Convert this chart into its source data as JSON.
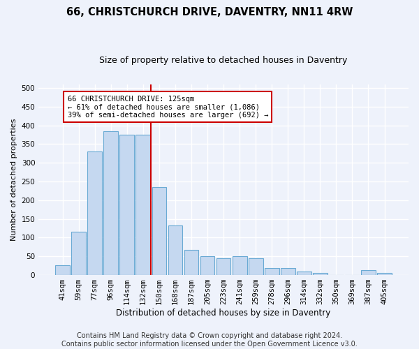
{
  "title": "66, CHRISTCHURCH DRIVE, DAVENTRY, NN11 4RW",
  "subtitle": "Size of property relative to detached houses in Daventry",
  "xlabel": "Distribution of detached houses by size in Daventry",
  "ylabel": "Number of detached properties",
  "bar_labels": [
    "41sqm",
    "59sqm",
    "77sqm",
    "96sqm",
    "114sqm",
    "132sqm",
    "150sqm",
    "168sqm",
    "187sqm",
    "205sqm",
    "223sqm",
    "241sqm",
    "259sqm",
    "278sqm",
    "296sqm",
    "314sqm",
    "332sqm",
    "350sqm",
    "369sqm",
    "387sqm",
    "405sqm"
  ],
  "bar_values": [
    27,
    116,
    330,
    385,
    375,
    375,
    236,
    133,
    68,
    50,
    44,
    50,
    44,
    18,
    18,
    10,
    5,
    0,
    0,
    13,
    5
  ],
  "bar_color": "#c5d8f0",
  "bar_edge_color": "#6aaad4",
  "vline_x": 5.5,
  "vline_color": "#cc0000",
  "annotation_text": "66 CHRISTCHURCH DRIVE: 125sqm\n← 61% of detached houses are smaller (1,086)\n39% of semi-detached houses are larger (692) →",
  "annotation_box_color": "#ffffff",
  "annotation_box_edge": "#cc0000",
  "ylim": [
    0,
    510
  ],
  "yticks": [
    0,
    50,
    100,
    150,
    200,
    250,
    300,
    350,
    400,
    450,
    500
  ],
  "footer_line1": "Contains HM Land Registry data © Crown copyright and database right 2024.",
  "footer_line2": "Contains public sector information licensed under the Open Government Licence v3.0.",
  "bg_color": "#eef2fb",
  "plot_bg_color": "#eef2fb",
  "grid_color": "#ffffff",
  "title_fontsize": 10.5,
  "subtitle_fontsize": 9,
  "xlabel_fontsize": 8.5,
  "ylabel_fontsize": 8,
  "tick_fontsize": 7.5,
  "footer_fontsize": 7
}
